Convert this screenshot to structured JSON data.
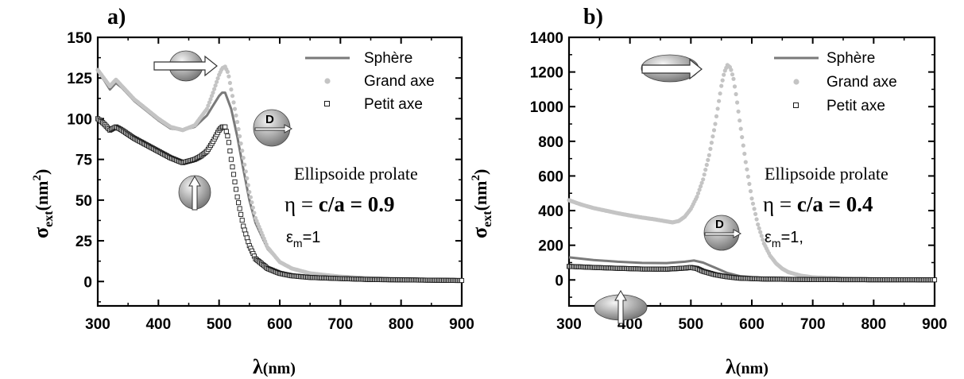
{
  "colors": {
    "sphere": "#7a7a7a",
    "grand_axe": "#c4c4c4",
    "petit_axe": "#1a1a1a",
    "axis": "#000000"
  },
  "chart_data": [
    {
      "type": "line",
      "panel": "a)",
      "xlabel": "λ",
      "xlabel_unit": "(nm)",
      "ylabel_main": "σ",
      "ylabel_sub": "ext",
      "ylabel_unit": "(nm",
      "ylabel_sup": "2",
      "ylabel_close": ")",
      "xlim": [
        300,
        900
      ],
      "ylim": [
        -15,
        150
      ],
      "xticks": [
        300,
        400,
        500,
        600,
        700,
        800,
        900
      ],
      "yticks": [
        0,
        25,
        50,
        75,
        100,
        125,
        150
      ],
      "legend": {
        "position": "top-right",
        "entries": [
          "Sphère",
          "Grand axe",
          "Petit axe"
        ]
      },
      "annotations": {
        "title": "Ellipsoide prolate",
        "eta_prefix": "η = ",
        "eta_expr": "c/a = 0.9",
        "eps_main": "ε",
        "eps_sub": "m",
        "eps_value": "=1",
        "icon_label": "D"
      },
      "series": [
        {
          "name": "Sphère",
          "style": "line",
          "x": [
            300,
            310,
            320,
            330,
            340,
            360,
            380,
            400,
            420,
            440,
            460,
            480,
            490,
            500,
            505,
            510,
            520,
            530,
            540,
            550,
            560,
            580,
            600,
            620,
            650,
            700,
            750,
            800,
            850,
            900
          ],
          "y": [
            129,
            124,
            118,
            122,
            119,
            111,
            105,
            99,
            94,
            93,
            95,
            102,
            108,
            114,
            116,
            116,
            106,
            89,
            69,
            50,
            36,
            20,
            12,
            8,
            5,
            3,
            2,
            1.5,
            1,
            0.8
          ]
        },
        {
          "name": "Grand axe",
          "style": "dots",
          "x": [
            300,
            310,
            320,
            330,
            340,
            360,
            380,
            400,
            420,
            440,
            460,
            480,
            490,
            500,
            505,
            510,
            515,
            520,
            530,
            540,
            550,
            560,
            580,
            600,
            620,
            650,
            700,
            750,
            800,
            850,
            900
          ],
          "y": [
            130,
            125,
            120,
            124,
            120,
            112,
            106,
            100,
            95,
            93,
            96,
            106,
            116,
            127,
            131,
            132,
            128,
            118,
            98,
            76,
            55,
            39,
            21,
            12,
            8,
            5,
            3,
            2,
            1.5,
            1,
            0.8
          ]
        },
        {
          "name": "Petit axe",
          "style": "squares",
          "x": [
            300,
            310,
            320,
            330,
            340,
            360,
            380,
            400,
            420,
            440,
            460,
            470,
            480,
            490,
            500,
            505,
            510,
            515,
            520,
            530,
            540,
            550,
            560,
            580,
            600,
            620,
            650,
            700,
            750,
            800,
            850,
            900
          ],
          "y": [
            100,
            97,
            93,
            95,
            93,
            88,
            84,
            80,
            76,
            73,
            75,
            77,
            80,
            86,
            93,
            95,
            95,
            88,
            75,
            52,
            34,
            22,
            14,
            8,
            5,
            3.5,
            2.5,
            1.8,
            1.2,
            1,
            0.8,
            0.6
          ]
        }
      ]
    },
    {
      "type": "line",
      "panel": "b)",
      "xlabel": "λ",
      "xlabel_unit": "(nm)",
      "ylabel_main": "σ",
      "ylabel_sub": "ext",
      "ylabel_unit": "(nm",
      "ylabel_sup": "2",
      "ylabel_close": ")",
      "xlim": [
        300,
        900
      ],
      "ylim": [
        -150,
        1400
      ],
      "xticks": [
        300,
        400,
        500,
        600,
        700,
        800,
        900
      ],
      "yticks": [
        0,
        200,
        400,
        600,
        800,
        1000,
        1200,
        1400
      ],
      "legend": {
        "position": "top-right",
        "entries": [
          "Sphère",
          "Grand axe",
          "Petit axe"
        ]
      },
      "annotations": {
        "title": "Ellipsoide prolate",
        "eta_prefix": "η = ",
        "eta_expr": "c/a = 0.4",
        "eps_main": "ε",
        "eps_sub": "m",
        "eps_value": "=1,",
        "icon_label": "D"
      },
      "series": [
        {
          "name": "Sphère",
          "style": "line",
          "x": [
            300,
            340,
            380,
            420,
            460,
            490,
            505,
            520,
            540,
            560,
            580,
            620,
            700,
            800,
            900
          ],
          "y": [
            130,
            115,
            105,
            98,
            97,
            105,
            112,
            100,
            70,
            40,
            22,
            10,
            4,
            2,
            1
          ]
        },
        {
          "name": "Grand axe",
          "style": "dots",
          "x": [
            300,
            320,
            340,
            360,
            380,
            400,
            420,
            440,
            460,
            470,
            480,
            490,
            500,
            510,
            520,
            530,
            540,
            545,
            550,
            555,
            560,
            565,
            570,
            575,
            580,
            590,
            600,
            610,
            620,
            630,
            640,
            650,
            660,
            680,
            700,
            750,
            800,
            850,
            900
          ],
          "y": [
            460,
            435,
            415,
            400,
            385,
            372,
            360,
            350,
            338,
            332,
            340,
            365,
            410,
            480,
            580,
            720,
            900,
            1010,
            1120,
            1200,
            1240,
            1225,
            1160,
            1050,
            920,
            680,
            470,
            320,
            210,
            140,
            95,
            65,
            45,
            25,
            15,
            8,
            5,
            3,
            2
          ]
        },
        {
          "name": "Petit axe",
          "style": "squares",
          "x": [
            300,
            340,
            380,
            420,
            460,
            490,
            500,
            510,
            520,
            540,
            560,
            580,
            620,
            700,
            800,
            900
          ],
          "y": [
            78,
            72,
            67,
            63,
            62,
            68,
            72,
            66,
            50,
            30,
            18,
            10,
            5,
            2,
            1,
            0.5
          ]
        }
      ]
    }
  ]
}
